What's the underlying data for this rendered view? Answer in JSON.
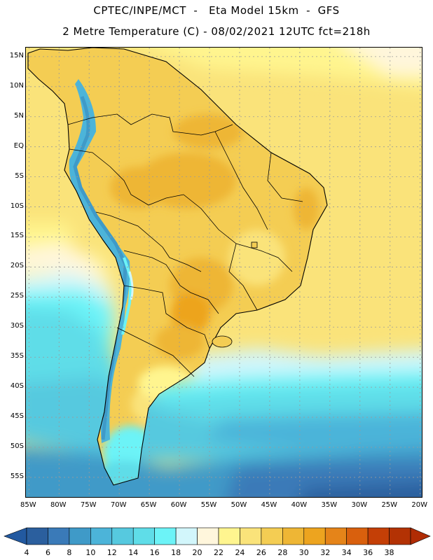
{
  "header": {
    "line1": "CPTEC/INPE/MCT  -   Eta Model 15km  -  GFS",
    "line2": "2 Metre Temperature (C) - 08/02/2021 12UTC fct=218h"
  },
  "map": {
    "region": "South America",
    "variable": "2 Metre Temperature",
    "units": "C",
    "lat_labels": [
      "15N",
      "10N",
      "5N",
      "EQ",
      "5S",
      "10S",
      "15S",
      "20S",
      "25S",
      "30S",
      "35S",
      "40S",
      "45S",
      "50S",
      "55S"
    ],
    "lon_labels": [
      "85W",
      "80W",
      "75W",
      "70W",
      "65W",
      "60W",
      "55W",
      "50W",
      "45W",
      "40W",
      "35W",
      "30W",
      "25W",
      "20W"
    ],
    "lat_values": [
      15,
      10,
      5,
      0,
      -5,
      -10,
      -15,
      -20,
      -25,
      -30,
      -35,
      -40,
      -45,
      -50,
      -55
    ],
    "lon_values": [
      -85,
      -80,
      -75,
      -70,
      -65,
      -60,
      -55,
      -50,
      -45,
      -40,
      -35,
      -30,
      -25,
      -20
    ],
    "extent": {
      "lon_min": -85.5,
      "lon_max": -19.5,
      "lat_min": -58.5,
      "lat_max": 16.5
    }
  },
  "legend": {
    "levels": [
      "4",
      "6",
      "8",
      "10",
      "12",
      "14",
      "16",
      "18",
      "20",
      "22",
      "24",
      "26",
      "28",
      "30",
      "32",
      "34",
      "36",
      "38"
    ],
    "colors": [
      "#2b5f9e",
      "#3a7ab8",
      "#3f9ac8",
      "#4cb4d9",
      "#56c9df",
      "#5fdde8",
      "#6cf3f7",
      "#d2f6fb",
      "#fff6dc",
      "#fff58f",
      "#fae37a",
      "#f4cd53",
      "#eeb635",
      "#eda41f",
      "#e58419",
      "#d9600d",
      "#c43f06",
      "#b33204"
    ],
    "low_color": "#2259a0",
    "high_color": "#b02c04"
  }
}
